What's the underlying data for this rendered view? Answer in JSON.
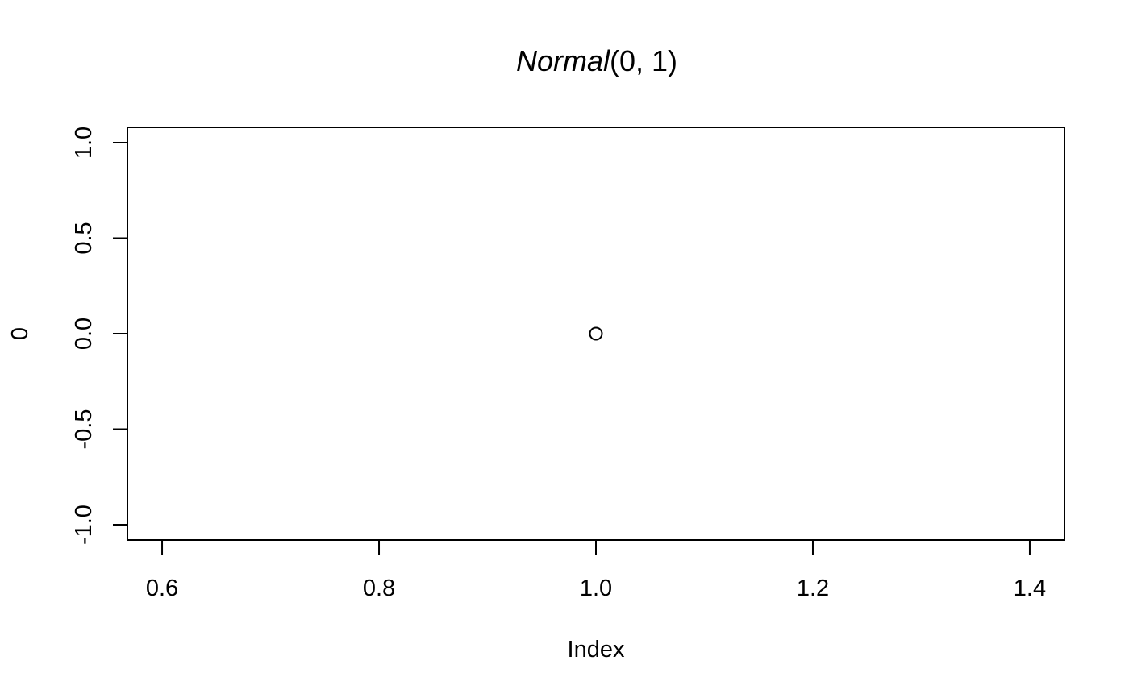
{
  "chart_data": {
    "type": "scatter",
    "title_italic": "Normal",
    "title_rest": "(0, 1)",
    "xlabel": "Index",
    "ylabel": "0",
    "xlim": [
      0.568,
      1.432
    ],
    "ylim": [
      -1.08,
      1.08
    ],
    "x_ticks": [
      0.6,
      0.8,
      1.0,
      1.2,
      1.4
    ],
    "x_tick_labels": [
      "0.6",
      "0.8",
      "1.0",
      "1.2",
      "1.4"
    ],
    "y_ticks": [
      -1.0,
      -0.5,
      0.0,
      0.5,
      1.0
    ],
    "y_tick_labels": [
      "-1.0",
      "-0.5",
      "0.0",
      "0.5",
      "1.0"
    ],
    "points": [
      {
        "x": 1.0,
        "y": 0.0
      }
    ],
    "marker": "open-circle",
    "grid": false,
    "legend": false,
    "colors": {
      "ink": "#000000",
      "background": "#ffffff"
    }
  }
}
